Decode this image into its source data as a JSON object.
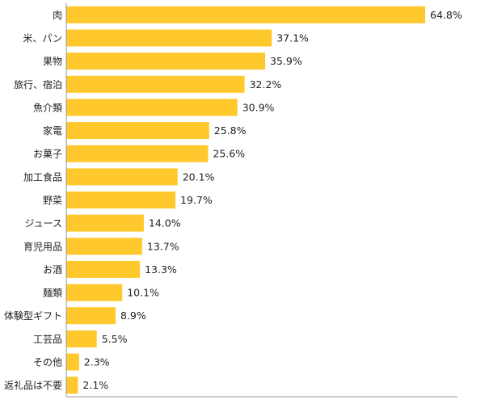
{
  "chart_data": {
    "type": "bar",
    "orientation": "horizontal",
    "categories": [
      "肉",
      "米、パン",
      "果物",
      "旅行、宿泊",
      "魚介類",
      "家電",
      "お菓子",
      "加工食品",
      "野菜",
      "ジュース",
      "育児用品",
      "お酒",
      "麺類",
      "体験型ギフト",
      "工芸品",
      "その他",
      "返礼品は不要"
    ],
    "values": [
      64.8,
      37.1,
      35.9,
      32.2,
      30.9,
      25.8,
      25.6,
      20.1,
      19.7,
      14.0,
      13.7,
      13.3,
      10.1,
      8.9,
      5.5,
      2.3,
      2.1
    ],
    "value_labels": [
      "64.8%",
      "37.1%",
      "35.9%",
      "32.2%",
      "30.9%",
      "25.8%",
      "25.6%",
      "20.1%",
      "19.7%",
      "14.0%",
      "13.7%",
      "13.3%",
      "10.1%",
      "8.9%",
      "5.5%",
      "2.3%",
      "2.1%"
    ],
    "title": "",
    "xlabel": "",
    "ylabel": "",
    "xlim": [
      0,
      70
    ],
    "grid": false,
    "legend": "none",
    "bar_color": "#FFC82C",
    "axis_color": "#999999"
  }
}
